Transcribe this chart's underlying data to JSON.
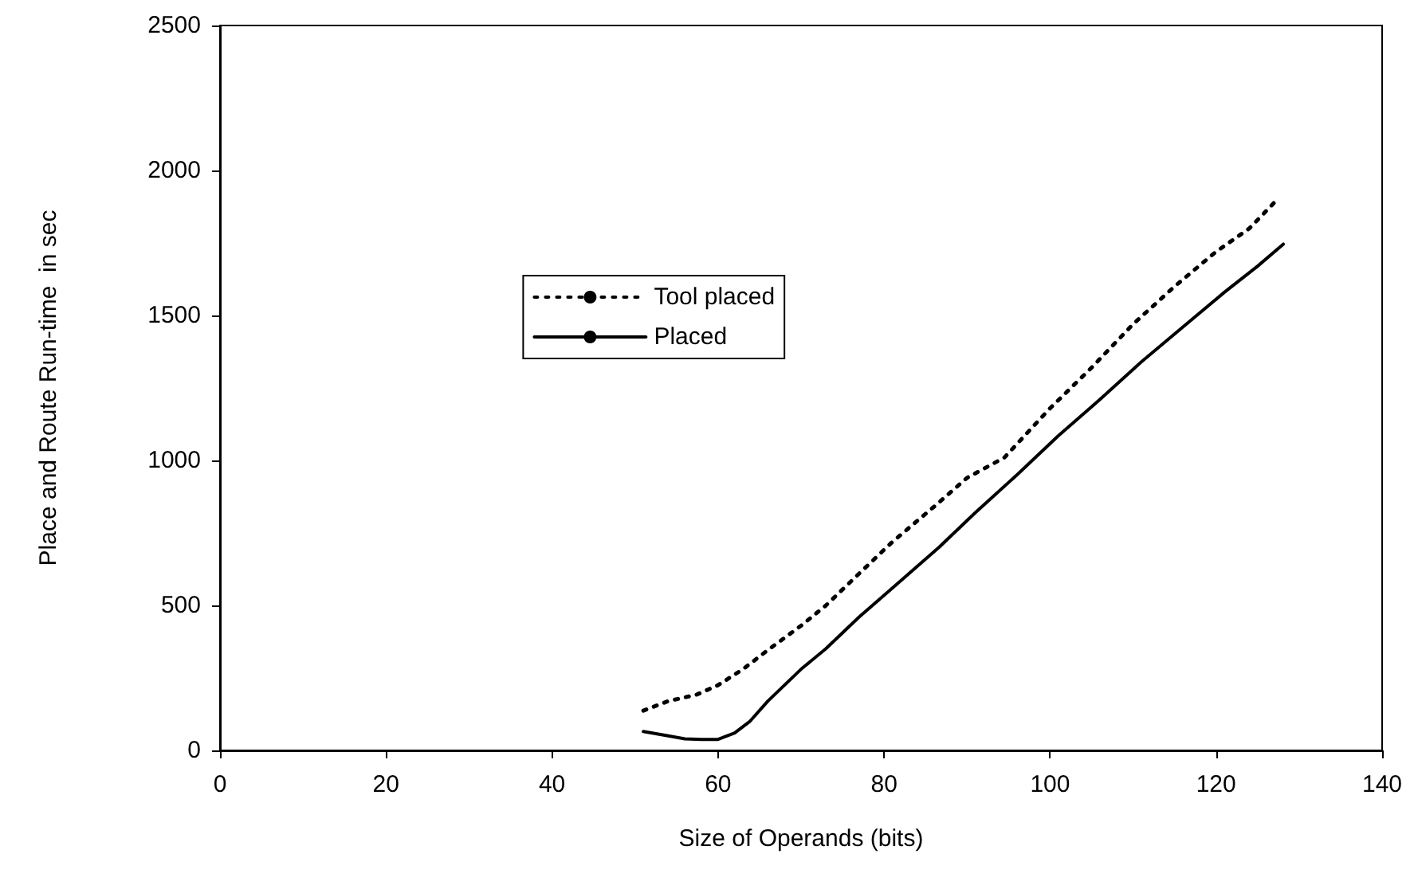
{
  "chart_data": {
    "type": "line",
    "xlabel": "Size of Operands (bits)",
    "ylabel": "Place and Route Run-time  in sec",
    "xlim": [
      0,
      140
    ],
    "xticks": [
      0,
      20,
      40,
      60,
      80,
      100,
      120,
      140
    ],
    "ylim": [
      0,
      2500
    ],
    "yticks": [
      0,
      500,
      1000,
      1500,
      2000,
      2500
    ],
    "grid": false,
    "legend": "center",
    "marker": "none",
    "series": [
      {
        "name": "Tool placed",
        "color": "#000000",
        "line_style": "dotted",
        "x": [
          51,
          54,
          57.4,
          60,
          63,
          66,
          70,
          73,
          77,
          81,
          86,
          90,
          94.5,
          100,
          105,
          110,
          115,
          120,
          124,
          127
        ],
        "values": [
          137,
          170,
          192,
          225,
          280,
          346,
          430,
          500,
          610,
          719,
          840,
          940,
          1010,
          1180,
          1320,
          1470,
          1600,
          1720,
          1800,
          1889
        ]
      },
      {
        "name": "Placed",
        "color": "#000000",
        "line_style": "solid",
        "x": [
          51,
          54,
          56,
          58,
          60,
          62,
          63.8,
          66,
          70,
          73,
          77,
          81,
          86.6,
          91,
          96,
          101,
          106,
          111,
          116,
          121,
          125,
          128.1
        ],
        "values": [
          65,
          50,
          40,
          38,
          38,
          60,
          99,
          170,
          280,
          351,
          460,
          560,
          700,
          820,
          950,
          1085,
          1210,
          1340,
          1460,
          1580,
          1670,
          1746
        ]
      }
    ]
  }
}
